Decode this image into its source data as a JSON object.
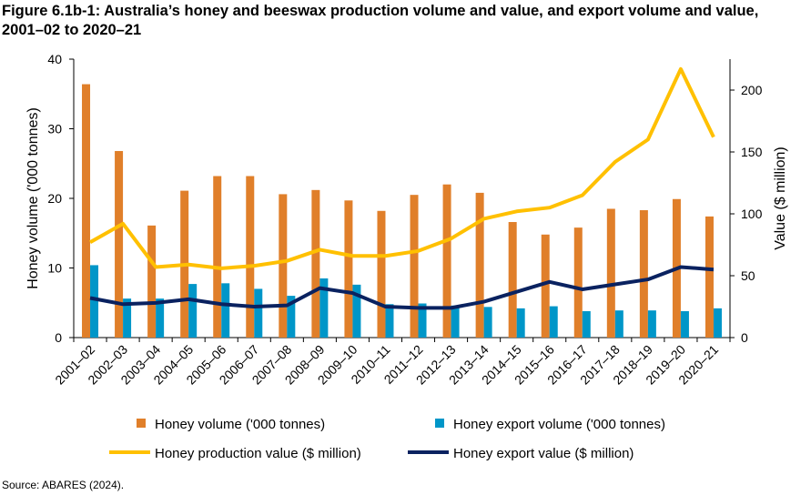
{
  "title": "Figure 6.1b-1: Australia’s honey and beeswax production volume and value, and export volume and value, 2001–02 to 2020–21",
  "source": "Source: ABARES (2024).",
  "chart_data": {
    "type": "bar",
    "title": "Figure 6.1b-1: Australia’s honey and beeswax production volume and value, and export volume and value, 2001–02 to 2020–21",
    "ylabel": "Honey  volume ('000 tonnes)",
    "y2label": "Value ($ million)",
    "ylim": [
      0,
      40
    ],
    "y2lim": [
      0,
      225
    ],
    "yticks": [
      0,
      10,
      20,
      30,
      40
    ],
    "y2ticks": [
      0,
      50,
      100,
      150,
      200
    ],
    "grid": false,
    "legend_position": "bottom",
    "categories": [
      "2001–02",
      "2002–03",
      "2003–04",
      "2004–05",
      "2005–06",
      "2006–07",
      "2007–08",
      "2008–09",
      "2009–10",
      "2010–11",
      "2011–12",
      "2012–13",
      "2013–14",
      "2014–15",
      "2015–16",
      "2016–17",
      "2017–18",
      "2018–19",
      "2019–20",
      "2020–21"
    ],
    "series": [
      {
        "name": "Honey volume ('000 tonnes)",
        "type": "bar",
        "axis": "left",
        "color": "#E07F2A",
        "values": [
          36.4,
          26.8,
          16.1,
          21.1,
          23.2,
          23.2,
          20.6,
          21.2,
          19.7,
          18.2,
          20.5,
          22.0,
          20.8,
          16.6,
          14.8,
          15.8,
          18.5,
          18.3,
          19.9,
          17.4
        ]
      },
      {
        "name": "Honey export volume ('000 tonnes)",
        "type": "bar",
        "axis": "left",
        "color": "#0096C8",
        "values": [
          10.4,
          5.6,
          5.6,
          7.7,
          7.8,
          7.0,
          6.0,
          8.5,
          7.6,
          4.8,
          4.9,
          4.6,
          4.4,
          4.2,
          4.5,
          3.8,
          3.9,
          3.9,
          3.8,
          4.2
        ]
      },
      {
        "name": "Honey production value ($ million)",
        "type": "line",
        "axis": "right",
        "color": "#FFC000",
        "values": [
          77,
          92,
          57,
          59,
          56,
          58,
          62,
          71,
          66,
          66,
          70,
          80,
          96,
          102,
          105,
          115,
          142,
          160,
          217,
          162
        ]
      },
      {
        "name": "Honey export value ($ million)",
        "type": "line",
        "axis": "right",
        "color": "#0A2260",
        "values": [
          32,
          27,
          28,
          31,
          27,
          25,
          26,
          40,
          36,
          25,
          24,
          24,
          29,
          37,
          45,
          39,
          43,
          47,
          57,
          55
        ]
      }
    ]
  }
}
